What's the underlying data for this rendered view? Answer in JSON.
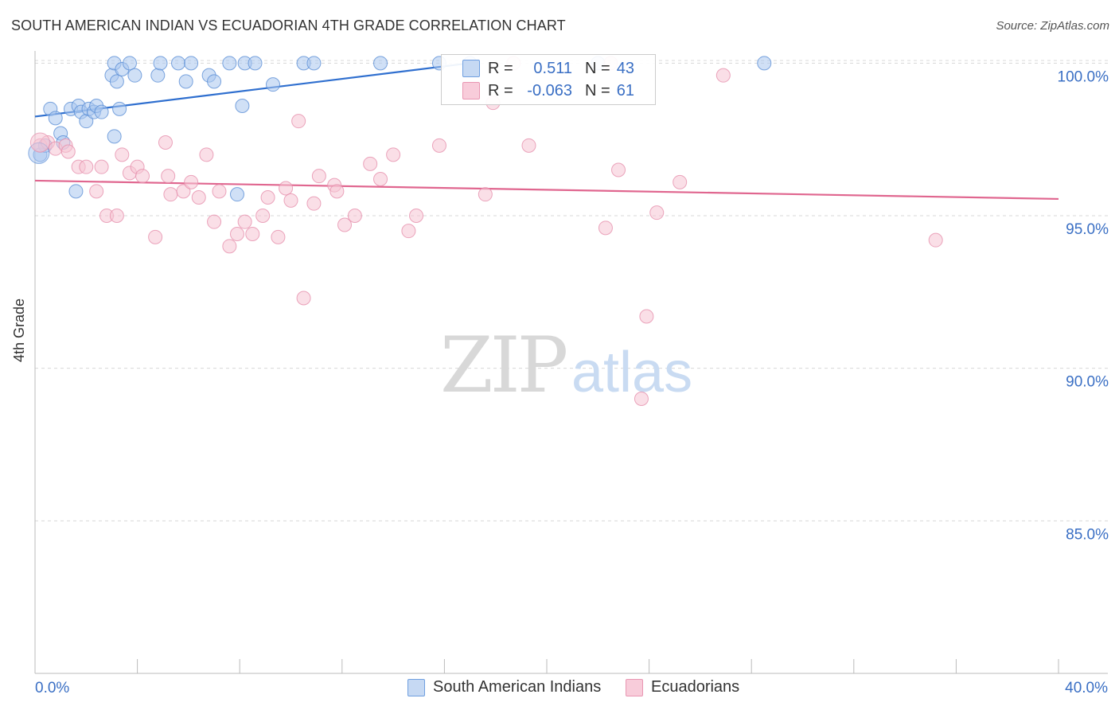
{
  "title": "SOUTH AMERICAN INDIAN VS ECUADORIAN 4TH GRADE CORRELATION CHART",
  "source": "Source: ZipAtlas.com",
  "watermark": {
    "part1": "ZIP",
    "part2": "atlas"
  },
  "colors": {
    "blue": "#5b8fd6",
    "blue_fill": "#a9c6ef",
    "blue_line": "#2f6fcf",
    "pink": "#e690ac",
    "pink_fill": "#f6c4d3",
    "pink_line": "#e0668f",
    "axis_text": "#3a6fc4",
    "grid": "#d8d8d8"
  },
  "legend": {
    "rows": [
      {
        "r_label": "R =",
        "r_value": "0.511",
        "n_label": "N =",
        "n_value": "43"
      },
      {
        "r_label": "R =",
        "r_value": "-0.063",
        "n_label": "N =",
        "n_value": "61"
      }
    ]
  },
  "bottom_legend": [
    "South American Indians",
    "Ecuadorians"
  ],
  "chart_data": {
    "type": "scatter",
    "xlabel": "",
    "ylabel": "4th Grade",
    "x_tick_labels": [
      "0.0%",
      "40.0%"
    ],
    "y_tick_labels": [
      "100.0%",
      "95.0%",
      "90.0%",
      "85.0%"
    ],
    "xlim": [
      0,
      40
    ],
    "ylim": [
      80.0,
      100.4
    ],
    "y_ticks": [
      100,
      95,
      90,
      85
    ],
    "legend_position": "top-center",
    "grid": true,
    "series": [
      {
        "name": "South American Indians",
        "trend": {
          "x": [
            0,
            17.0
          ],
          "y": [
            98.25,
            100.0
          ]
        },
        "points": [
          [
            0.2,
            97.0
          ],
          [
            0.4,
            97.3
          ],
          [
            0.6,
            98.5
          ],
          [
            0.8,
            98.2
          ],
          [
            1.0,
            97.7
          ],
          [
            1.1,
            97.4
          ],
          [
            1.4,
            98.5
          ],
          [
            1.6,
            95.8
          ],
          [
            1.7,
            98.6
          ],
          [
            1.8,
            98.4
          ],
          [
            2.0,
            98.1
          ],
          [
            2.1,
            98.5
          ],
          [
            2.3,
            98.4
          ],
          [
            2.4,
            98.6
          ],
          [
            2.6,
            98.4
          ],
          [
            3.0,
            99.6
          ],
          [
            3.1,
            100.0
          ],
          [
            3.1,
            97.6
          ],
          [
            3.2,
            99.4
          ],
          [
            3.3,
            98.5
          ],
          [
            3.4,
            99.8
          ],
          [
            3.7,
            100.0
          ],
          [
            3.9,
            99.6
          ],
          [
            4.8,
            99.6
          ],
          [
            4.9,
            100.0
          ],
          [
            5.6,
            100.0
          ],
          [
            5.9,
            99.4
          ],
          [
            6.1,
            100.0
          ],
          [
            6.8,
            99.6
          ],
          [
            7.0,
            99.4
          ],
          [
            7.6,
            100.0
          ],
          [
            7.9,
            95.7
          ],
          [
            8.1,
            98.6
          ],
          [
            8.2,
            100.0
          ],
          [
            8.6,
            100.0
          ],
          [
            9.3,
            99.3
          ],
          [
            10.5,
            100.0
          ],
          [
            10.9,
            100.0
          ],
          [
            13.5,
            100.0
          ],
          [
            15.8,
            100.0
          ],
          [
            17.0,
            100.0
          ],
          [
            22.0,
            100.0
          ],
          [
            28.5,
            100.0
          ]
        ]
      },
      {
        "name": "Ecuadorians",
        "trend": {
          "x": [
            0,
            40
          ],
          "y": [
            96.15,
            95.55
          ]
        },
        "points": [
          [
            0.2,
            97.3
          ],
          [
            0.5,
            97.4
          ],
          [
            0.8,
            97.2
          ],
          [
            1.2,
            97.3
          ],
          [
            1.3,
            97.1
          ],
          [
            1.7,
            96.6
          ],
          [
            2.0,
            96.6
          ],
          [
            2.4,
            95.8
          ],
          [
            2.6,
            96.6
          ],
          [
            2.8,
            95.0
          ],
          [
            3.2,
            95.0
          ],
          [
            3.4,
            97.0
          ],
          [
            3.7,
            96.4
          ],
          [
            4.0,
            96.6
          ],
          [
            4.2,
            96.3
          ],
          [
            4.7,
            94.3
          ],
          [
            5.1,
            97.4
          ],
          [
            5.2,
            96.3
          ],
          [
            5.3,
            95.7
          ],
          [
            5.8,
            95.8
          ],
          [
            6.1,
            96.1
          ],
          [
            6.4,
            95.6
          ],
          [
            6.7,
            97.0
          ],
          [
            7.0,
            94.8
          ],
          [
            7.2,
            95.8
          ],
          [
            7.6,
            94.0
          ],
          [
            7.9,
            94.4
          ],
          [
            8.2,
            94.8
          ],
          [
            8.5,
            94.4
          ],
          [
            8.9,
            95.0
          ],
          [
            9.1,
            95.6
          ],
          [
            9.5,
            94.3
          ],
          [
            9.8,
            95.9
          ],
          [
            10.0,
            95.5
          ],
          [
            10.3,
            98.1
          ],
          [
            10.5,
            92.3
          ],
          [
            10.9,
            95.4
          ],
          [
            11.1,
            96.3
          ],
          [
            11.7,
            96.0
          ],
          [
            11.8,
            95.8
          ],
          [
            12.1,
            94.7
          ],
          [
            12.5,
            95.0
          ],
          [
            13.1,
            96.7
          ],
          [
            13.5,
            96.2
          ],
          [
            14.0,
            97.0
          ],
          [
            14.6,
            94.5
          ],
          [
            14.9,
            95.0
          ],
          [
            15.8,
            97.3
          ],
          [
            17.6,
            95.7
          ],
          [
            17.9,
            98.7
          ],
          [
            18.7,
            100.0
          ],
          [
            19.3,
            97.3
          ],
          [
            22.3,
            94.6
          ],
          [
            22.5,
            100.0
          ],
          [
            22.8,
            96.5
          ],
          [
            23.7,
            89.0
          ],
          [
            23.9,
            91.7
          ],
          [
            24.3,
            95.1
          ],
          [
            25.2,
            96.1
          ],
          [
            26.9,
            99.6
          ],
          [
            35.2,
            94.2
          ]
        ]
      }
    ]
  }
}
